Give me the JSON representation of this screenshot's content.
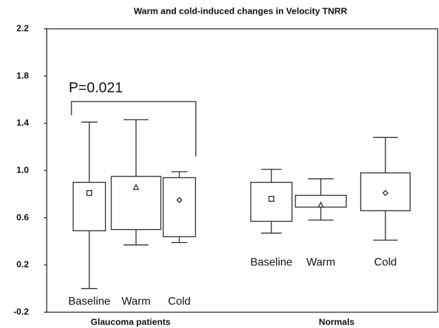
{
  "chart_data": {
    "type": "box",
    "title": "Warm and cold-induced changes in Velocity TNRR",
    "ylim": [
      -0.2,
      2.2
    ],
    "yticks": [
      -0.2,
      0.2,
      0.6,
      {
        "value": 1.0,
        "label": "1.0"
      },
      1.4,
      1.8,
      2.2
    ],
    "groups": [
      "Glaucoma patients",
      "Normals"
    ],
    "categories": [
      "Baseline",
      "Warm",
      "Cold",
      "Baseline",
      "Warm",
      "Cold"
    ],
    "boxes": [
      {
        "min": 0.0,
        "q1": 0.49,
        "q3": 0.9,
        "max": 1.41,
        "mean": 0.81
      },
      {
        "min": 0.37,
        "q1": 0.5,
        "q3": 0.95,
        "max": 1.43,
        "mean": 0.86
      },
      {
        "min": 0.39,
        "q1": 0.44,
        "q3": 0.94,
        "max": 0.99,
        "mean": 0.75
      },
      {
        "min": 0.47,
        "q1": 0.57,
        "q3": 0.9,
        "max": 1.01,
        "mean": 0.76
      },
      {
        "min": 0.58,
        "q1": 0.69,
        "q3": 0.79,
        "max": 0.93,
        "mean": 0.71
      },
      {
        "min": 0.41,
        "q1": 0.66,
        "q3": 0.98,
        "max": 1.28,
        "mean": 0.81
      }
    ],
    "annotation": "P=0.021"
  }
}
